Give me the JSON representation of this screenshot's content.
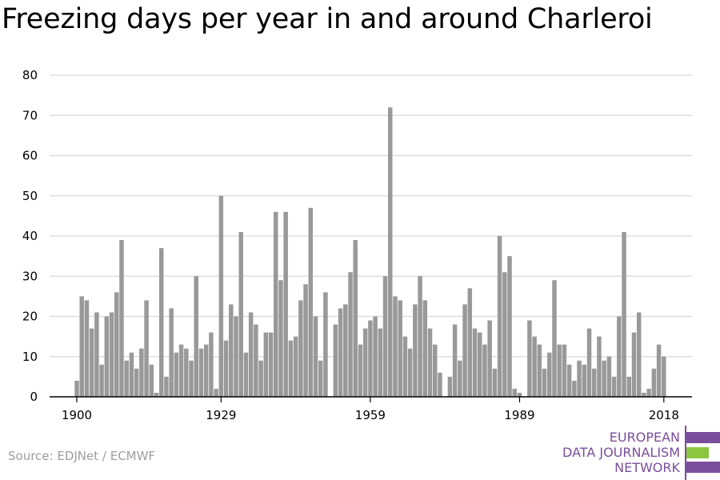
{
  "title": "Freezing days per year in and around Charleroi",
  "source": "Source: EDJNet / ECMWF",
  "logo": {
    "lines": [
      "EUROPEAN",
      "DATA JOURNALISM",
      "NETWORK"
    ]
  },
  "colors": {
    "bar": "#999999",
    "grid": "#d9d9d9",
    "axis": "#000000",
    "logo_purple": "#7a4e9c",
    "logo_green": "#8cc63f"
  },
  "chart_data": {
    "type": "bar",
    "title": "Freezing days per year in and around Charleroi",
    "xlabel": "",
    "ylabel": "",
    "ylim": [
      0,
      80
    ],
    "yticks": [
      0,
      10,
      20,
      30,
      40,
      50,
      60,
      70,
      80
    ],
    "xticks": [
      "1900",
      "1929",
      "1959",
      "1989",
      "2018"
    ],
    "grid": true,
    "categories": [
      1900,
      1901,
      1902,
      1903,
      1904,
      1905,
      1906,
      1907,
      1908,
      1909,
      1910,
      1911,
      1912,
      1913,
      1914,
      1915,
      1916,
      1917,
      1918,
      1919,
      1920,
      1921,
      1922,
      1923,
      1924,
      1925,
      1926,
      1927,
      1928,
      1929,
      1930,
      1931,
      1932,
      1933,
      1934,
      1935,
      1936,
      1937,
      1938,
      1939,
      1940,
      1941,
      1942,
      1943,
      1944,
      1945,
      1946,
      1947,
      1948,
      1949,
      1950,
      1951,
      1952,
      1953,
      1954,
      1955,
      1956,
      1957,
      1958,
      1959,
      1960,
      1961,
      1962,
      1963,
      1964,
      1965,
      1966,
      1967,
      1968,
      1969,
      1970,
      1971,
      1972,
      1973,
      1974,
      1975,
      1976,
      1977,
      1978,
      1979,
      1980,
      1981,
      1982,
      1983,
      1984,
      1985,
      1986,
      1987,
      1988,
      1989,
      1990,
      1991,
      1992,
      1993,
      1994,
      1995,
      1996,
      1997,
      1998,
      1999,
      2000,
      2001,
      2002,
      2003,
      2004,
      2005,
      2006,
      2007,
      2008,
      2009,
      2010,
      2011,
      2012,
      2013,
      2014,
      2015,
      2016,
      2017,
      2018
    ],
    "values": [
      4,
      25,
      24,
      17,
      21,
      8,
      20,
      21,
      26,
      39,
      9,
      11,
      7,
      12,
      24,
      8,
      1,
      37,
      5,
      22,
      11,
      13,
      12,
      9,
      30,
      12,
      13,
      16,
      2,
      50,
      14,
      23,
      20,
      41,
      11,
      21,
      18,
      9,
      16,
      16,
      46,
      29,
      46,
      14,
      15,
      24,
      28,
      47,
      20,
      9,
      26,
      0,
      18,
      22,
      23,
      31,
      39,
      13,
      17,
      19,
      20,
      17,
      30,
      72,
      25,
      24,
      15,
      12,
      23,
      30,
      24,
      17,
      13,
      6,
      0,
      5,
      18,
      9,
      23,
      27,
      17,
      16,
      13,
      19,
      7,
      40,
      31,
      35,
      2,
      1,
      0,
      19,
      15,
      13,
      7,
      11,
      29,
      13,
      13,
      8,
      4,
      9,
      8,
      17,
      7,
      15,
      9,
      10,
      5,
      20,
      41,
      5,
      16,
      21,
      1,
      2,
      7,
      13,
      10
    ]
  }
}
